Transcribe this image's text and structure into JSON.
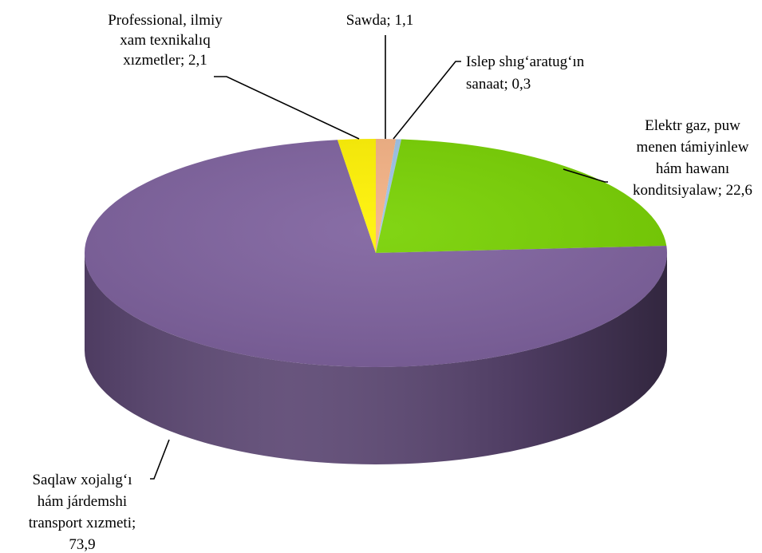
{
  "chart_data": {
    "type": "pie",
    "style": "3d",
    "title": "",
    "slices": [
      {
        "label_lines": [
          "Sawda; 1,1"
        ],
        "value": 1.1,
        "color": "#F4B183"
      },
      {
        "label_lines": [
          "Islep shıg‘aratug‘ın",
          "sanaat; 0,3"
        ],
        "value": 0.3,
        "color": "#9DC3E6"
      },
      {
        "label_lines": [
          "Elektr gaz, puw",
          "menen támiyinlew",
          "hám hawanı",
          "konditsiyalaw; 22,6"
        ],
        "value": 22.6,
        "color": "#77D100"
      },
      {
        "label_lines": [
          "Saqlaw xojalıg‘ı",
          "hám járdemshi",
          "transport xızmeti;",
          "73,9"
        ],
        "value": 73.9,
        "color": "#7E619E"
      },
      {
        "label_lines": [
          "Professional, ilmiy",
          "xam texnikalıq",
          "xızmetler; 2,1"
        ],
        "value": 2.1,
        "color": "#FFF200"
      }
    ]
  }
}
